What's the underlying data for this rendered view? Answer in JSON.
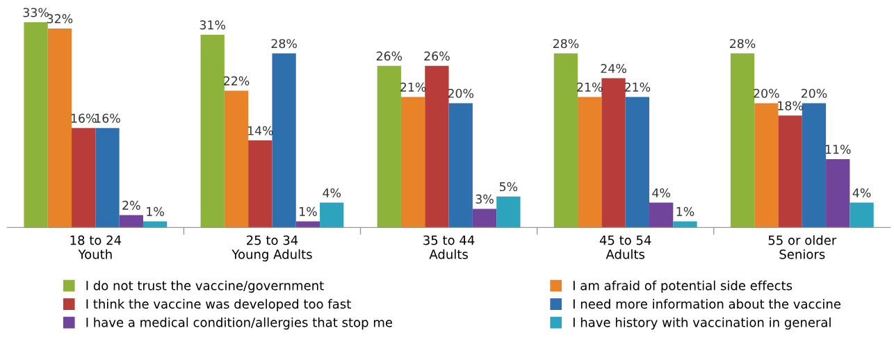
{
  "chart_data": {
    "type": "bar",
    "categories": [
      "18 to 24\nYouth",
      "25 to 34\nYoung Adults",
      "35 to 44\nAdults",
      "45 to 54\nAdults",
      "55 or older\nSeniors"
    ],
    "series": [
      {
        "name": "I do not trust the vaccine/government",
        "color": "#8db33a",
        "values": [
          33,
          31,
          26,
          28,
          28
        ],
        "value_labels": [
          "33%",
          "31%",
          "26%",
          "28%",
          "28%"
        ]
      },
      {
        "name": "I am afraid of potential side effects",
        "color": "#e8832a",
        "values": [
          32,
          22,
          21,
          21,
          20
        ],
        "value_labels": [
          "32%",
          "22%",
          "21%",
          "21%",
          "20%"
        ]
      },
      {
        "name": "I think the vaccine was developed too fast",
        "color": "#b83c3a",
        "values": [
          16,
          14,
          26,
          24,
          18
        ],
        "value_labels": [
          "16%",
          "14%",
          "26%",
          "24%",
          "18%"
        ]
      },
      {
        "name": "I need more information about the vaccine",
        "color": "#2e6fae",
        "values": [
          16,
          28,
          20,
          21,
          20
        ],
        "value_labels": [
          "16%",
          "28%",
          "20%",
          "21%",
          "20%"
        ]
      },
      {
        "name": "I have a medical condition/allergies that stop me",
        "color": "#6f449a",
        "values": [
          2,
          1,
          3,
          4,
          11
        ],
        "value_labels": [
          "2%",
          "1%",
          "3%",
          "4%",
          "11%"
        ]
      },
      {
        "name": "I have history with vaccination in general",
        "color": "#2ea3bd",
        "values": [
          1,
          4,
          5,
          1,
          4
        ],
        "value_labels": [
          "1%",
          "4%",
          "5%",
          "1%",
          "4%"
        ]
      }
    ],
    "legend": "bottom",
    "grid": false,
    "tick_labels": "x"
  }
}
